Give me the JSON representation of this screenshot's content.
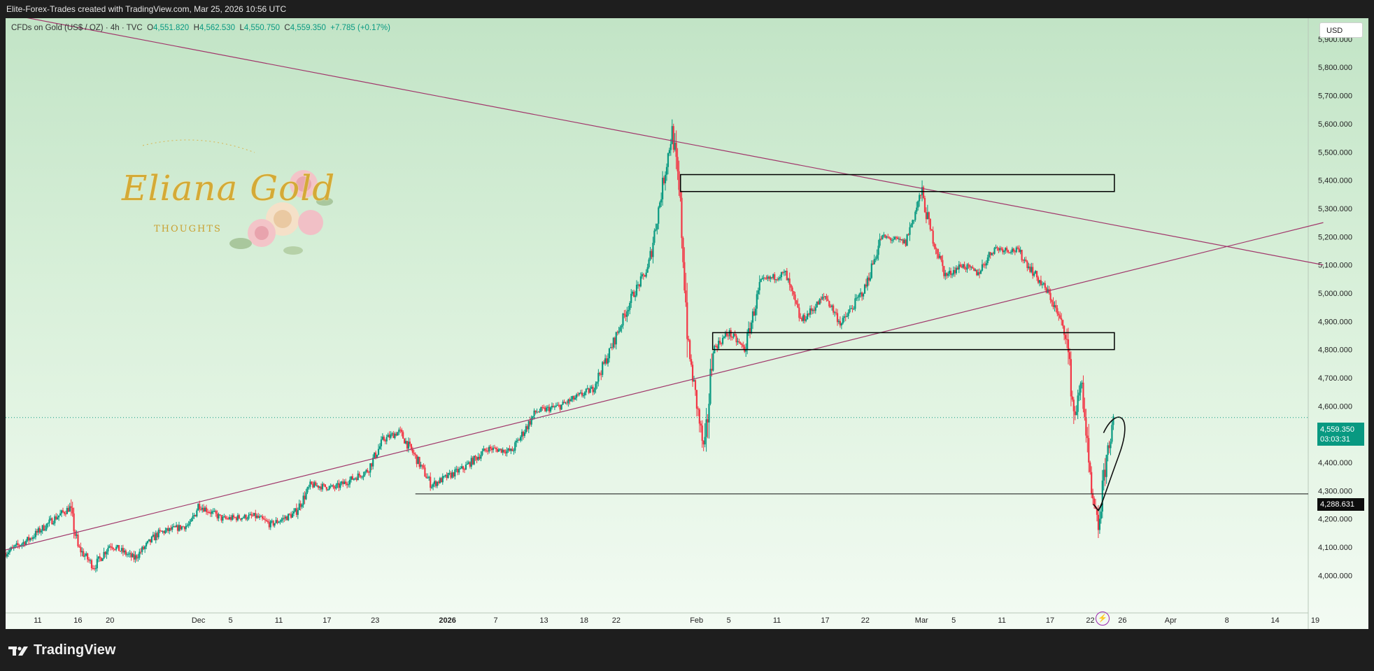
{
  "header": {
    "caption": "Elite-Forex-Trades created with TradingView.com, Mar 25, 2026 10:56 UTC"
  },
  "legend": {
    "symbol": "CFDs on Gold (US$ / OZ) · 4h · TVC",
    "o_label": "O",
    "o": "4,551.820",
    "h_label": "H",
    "h": "4,562.530",
    "l_label": "L",
    "l": "4,550.750",
    "c_label": "C",
    "c": "4,559.350",
    "change": "+7.785 (+0.17%)"
  },
  "currency": "USD",
  "current_price": {
    "value": "4,559.350",
    "countdown": "03:03:31"
  },
  "hline_label": "4,288.631",
  "watermark": {
    "line1": "Eliana Gold",
    "line2": "THOUGHTS"
  },
  "footer": {
    "brand": "TradingView"
  },
  "colors": {
    "up": "#089981",
    "down": "#f23645",
    "trendline": "#a1376b",
    "box": "#000000",
    "accent": "#9c27b0"
  },
  "icons": [
    "tradingview-logo-icon",
    "lightning-icon"
  ],
  "chart_data": {
    "type": "candlestick",
    "instrument": "CFDs on Gold (US$ / OZ)",
    "timeframe": "4h",
    "y_ticks": [
      4000,
      4100,
      4200,
      4300,
      4400,
      4500,
      4600,
      4700,
      4800,
      4900,
      5000,
      5100,
      5200,
      5300,
      5400,
      5500,
      5600,
      5700,
      5800,
      5900
    ],
    "y_tick_labels": [
      "4,000.000",
      "4,100.000",
      "4,200.000",
      "4,300.000",
      "4,400.000",
      "4,500.000",
      "4,600.000",
      "4,700.000",
      "4,800.000",
      "4,900.000",
      "5,000.000",
      "5,100.000",
      "5,200.000",
      "5,300.000",
      "5,400.000",
      "5,500.000",
      "5,600.000",
      "5,700.000",
      "5,800.000",
      "5,900.000"
    ],
    "ylim": [
      3940,
      6000
    ],
    "x_ticks": [
      {
        "label": "11",
        "date": "2025-11-11"
      },
      {
        "label": "16",
        "date": "2025-11-16"
      },
      {
        "label": "20",
        "date": "2025-11-20"
      },
      {
        "label": "Dec",
        "date": "2025-12-01"
      },
      {
        "label": "5",
        "date": "2025-12-05"
      },
      {
        "label": "11",
        "date": "2025-12-11"
      },
      {
        "label": "17",
        "date": "2025-12-17"
      },
      {
        "label": "23",
        "date": "2025-12-23"
      },
      {
        "label": "2026",
        "date": "2026-01-01"
      },
      {
        "label": "7",
        "date": "2026-01-07"
      },
      {
        "label": "13",
        "date": "2026-01-13"
      },
      {
        "label": "18",
        "date": "2026-01-18"
      },
      {
        "label": "22",
        "date": "2026-01-22"
      },
      {
        "label": "Feb",
        "date": "2026-02-01"
      },
      {
        "label": "5",
        "date": "2026-02-05"
      },
      {
        "label": "11",
        "date": "2026-02-11"
      },
      {
        "label": "17",
        "date": "2026-02-17"
      },
      {
        "label": "22",
        "date": "2026-02-22"
      },
      {
        "label": "Mar",
        "date": "2026-03-01"
      },
      {
        "label": "5",
        "date": "2026-03-05"
      },
      {
        "label": "11",
        "date": "2026-03-11"
      },
      {
        "label": "17",
        "date": "2026-03-17"
      },
      {
        "label": "22",
        "date": "2026-03-22"
      },
      {
        "label": "26",
        "date": "2026-03-26"
      },
      {
        "label": "Apr",
        "date": "2026-04-01"
      },
      {
        "label": "8",
        "date": "2026-04-08"
      },
      {
        "label": "14",
        "date": "2026-04-14"
      },
      {
        "label": "19",
        "date": "2026-04-19"
      }
    ],
    "price_path": [
      {
        "date": "2025-11-07",
        "price": 4080
      },
      {
        "date": "2025-11-10",
        "price": 4130
      },
      {
        "date": "2025-11-13",
        "price": 4200
      },
      {
        "date": "2025-11-15",
        "price": 4240
      },
      {
        "date": "2025-11-16",
        "price": 4100
      },
      {
        "date": "2025-11-18",
        "price": 4030
      },
      {
        "date": "2025-11-20",
        "price": 4110
      },
      {
        "date": "2025-11-23",
        "price": 4060
      },
      {
        "date": "2025-11-26",
        "price": 4150
      },
      {
        "date": "2025-11-30",
        "price": 4180
      },
      {
        "date": "2025-12-01",
        "price": 4250
      },
      {
        "date": "2025-12-04",
        "price": 4200
      },
      {
        "date": "2025-12-08",
        "price": 4210
      },
      {
        "date": "2025-12-10",
        "price": 4180
      },
      {
        "date": "2025-12-13",
        "price": 4220
      },
      {
        "date": "2025-12-15",
        "price": 4320
      },
      {
        "date": "2025-12-18",
        "price": 4310
      },
      {
        "date": "2025-12-22",
        "price": 4370
      },
      {
        "date": "2025-12-24",
        "price": 4480
      },
      {
        "date": "2025-12-26",
        "price": 4510
      },
      {
        "date": "2025-12-28",
        "price": 4420
      },
      {
        "date": "2025-12-30",
        "price": 4320
      },
      {
        "date": "2026-01-03",
        "price": 4380
      },
      {
        "date": "2026-01-06",
        "price": 4450
      },
      {
        "date": "2026-01-09",
        "price": 4440
      },
      {
        "date": "2026-01-12",
        "price": 4580
      },
      {
        "date": "2026-01-15",
        "price": 4600
      },
      {
        "date": "2026-01-19",
        "price": 4660
      },
      {
        "date": "2026-01-21",
        "price": 4780
      },
      {
        "date": "2026-01-24",
        "price": 4990
      },
      {
        "date": "2026-01-26",
        "price": 5090
      },
      {
        "date": "2026-01-28",
        "price": 5420
      },
      {
        "date": "2026-01-29",
        "price": 5580
      },
      {
        "date": "2026-01-30",
        "price": 5300
      },
      {
        "date": "2026-01-31",
        "price": 4800
      },
      {
        "date": "2026-02-02",
        "price": 4420
      },
      {
        "date": "2026-02-03",
        "price": 4800
      },
      {
        "date": "2026-02-05",
        "price": 4860
      },
      {
        "date": "2026-02-07",
        "price": 4800
      },
      {
        "date": "2026-02-09",
        "price": 5040
      },
      {
        "date": "2026-02-12",
        "price": 5070
      },
      {
        "date": "2026-02-14",
        "price": 4900
      },
      {
        "date": "2026-02-17",
        "price": 4990
      },
      {
        "date": "2026-02-19",
        "price": 4890
      },
      {
        "date": "2026-02-22",
        "price": 5020
      },
      {
        "date": "2026-02-24",
        "price": 5200
      },
      {
        "date": "2026-02-27",
        "price": 5180
      },
      {
        "date": "2026-03-01",
        "price": 5360
      },
      {
        "date": "2026-03-02",
        "price": 5230
      },
      {
        "date": "2026-03-04",
        "price": 5060
      },
      {
        "date": "2026-03-06",
        "price": 5100
      },
      {
        "date": "2026-03-08",
        "price": 5070
      },
      {
        "date": "2026-03-10",
        "price": 5160
      },
      {
        "date": "2026-03-13",
        "price": 5150
      },
      {
        "date": "2026-03-15",
        "price": 5070
      },
      {
        "date": "2026-03-17",
        "price": 4990
      },
      {
        "date": "2026-03-19",
        "price": 4850
      },
      {
        "date": "2026-03-20",
        "price": 4560
      },
      {
        "date": "2026-03-21",
        "price": 4690
      },
      {
        "date": "2026-03-22",
        "price": 4300
      },
      {
        "date": "2026-03-23",
        "price": 4170
      },
      {
        "date": "2026-03-24",
        "price": 4420
      },
      {
        "date": "2026-03-25",
        "price": 4559.35
      }
    ],
    "annotations": [
      {
        "type": "trendline",
        "from": {
          "date": "2025-11-07",
          "price": 5990
        },
        "to": {
          "date": "2026-04-20",
          "price": 5100
        }
      },
      {
        "type": "trendline",
        "from": {
          "date": "2025-11-07",
          "price": 4090
        },
        "to": {
          "date": "2026-04-20",
          "price": 5250
        }
      },
      {
        "type": "rectangle",
        "from": {
          "date": "2026-01-30",
          "price": 5420
        },
        "to": {
          "date": "2026-03-25",
          "price": 5360
        }
      },
      {
        "type": "rectangle",
        "from": {
          "date": "2026-02-03",
          "price": 4860
        },
        "to": {
          "date": "2026-03-25",
          "price": 4800
        }
      },
      {
        "type": "horizontal_ray",
        "from": {
          "date": "2025-12-28",
          "price": 4288.631
        }
      },
      {
        "type": "arrow",
        "from": {
          "date": "2026-03-24",
          "price": 4500
        },
        "to": {
          "date": "2026-03-23",
          "price": 4230
        }
      }
    ]
  }
}
